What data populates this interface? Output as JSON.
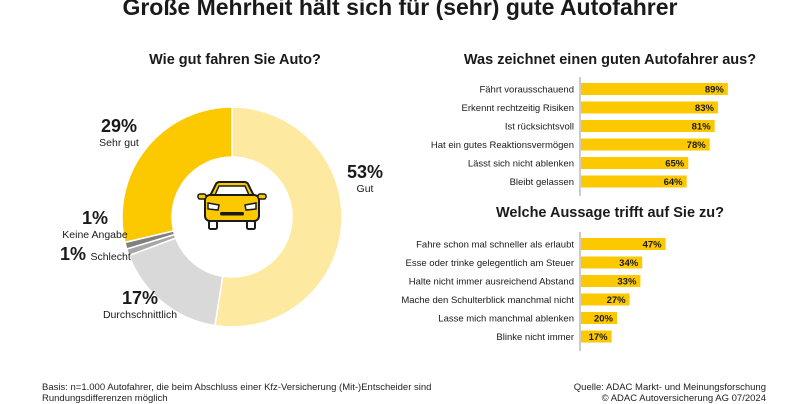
{
  "title": "Große Mehrheit hält sich für (sehr) gute Autofahrer",
  "colors": {
    "accent": "#fcc800",
    "light_yellow": "#fde9a0",
    "grey_light": "#d9d9d9",
    "grey_mid": "#a6a6a6",
    "grey_dark": "#7f7f7f"
  },
  "chart_data": [
    {
      "type": "pie",
      "title": "Wie gut fahren Sie Auto?",
      "center_icon": "car-icon",
      "slices": [
        {
          "label": "Gut",
          "value": 53,
          "display": "53%",
          "color": "#fde9a0"
        },
        {
          "label": "Durchschnittlich",
          "value": 17,
          "display": "17%",
          "color": "#d9d9d9"
        },
        {
          "label": "Schlecht",
          "value": 1,
          "display": "1%",
          "color": "#a6a6a6"
        },
        {
          "label": "Keine Angabe",
          "value": 1,
          "display": "1%",
          "color": "#7f7f7f"
        },
        {
          "label": "Sehr gut",
          "value": 29,
          "display": "29%",
          "color": "#fcc800"
        }
      ]
    },
    {
      "type": "bar",
      "orientation": "horizontal",
      "title": "Was zeichnet einen guten Autofahrer aus?",
      "categories": [
        "Fährt vorausschauend",
        "Erkennt rechtzeitig Risiken",
        "Ist rücksichtsvoll",
        "Hat ein gutes Reaktionsvermögen",
        "Lässt sich nicht ablenken",
        "Bleibt gelassen"
      ],
      "values": [
        89,
        83,
        81,
        78,
        65,
        64
      ],
      "labels": [
        "89%",
        "83%",
        "81%",
        "78%",
        "65%",
        "64%"
      ],
      "color": "#fcc800"
    },
    {
      "type": "bar",
      "orientation": "horizontal",
      "title": "Welche Aussage trifft auf Sie zu?",
      "categories": [
        "Fahre schon mal schneller als erlaubt",
        "Esse oder trinke gelegentlich am Steuer",
        "Halte nicht immer ausreichend Abstand",
        "Mache den Schulterblick manchmal nicht",
        "Lasse mich manchmal ablenken",
        "Blinke nicht immer"
      ],
      "values": [
        47,
        34,
        33,
        27,
        20,
        17
      ],
      "labels": [
        "47%",
        "34%",
        "33%",
        "27%",
        "20%",
        "17%"
      ],
      "color": "#fcc800"
    }
  ],
  "footer": {
    "basis_line1": "Basis: n=1.000 Autofahrer, die beim Abschluss einer Kfz-Versicherung (Mit-)Entscheider sind",
    "basis_line2": "Rundungsdifferenzen möglich",
    "source_line1": "Quelle: ADAC Markt- und Meinungsforschung",
    "source_line2": "© ADAC Autoversicherung AG 07/2024"
  }
}
